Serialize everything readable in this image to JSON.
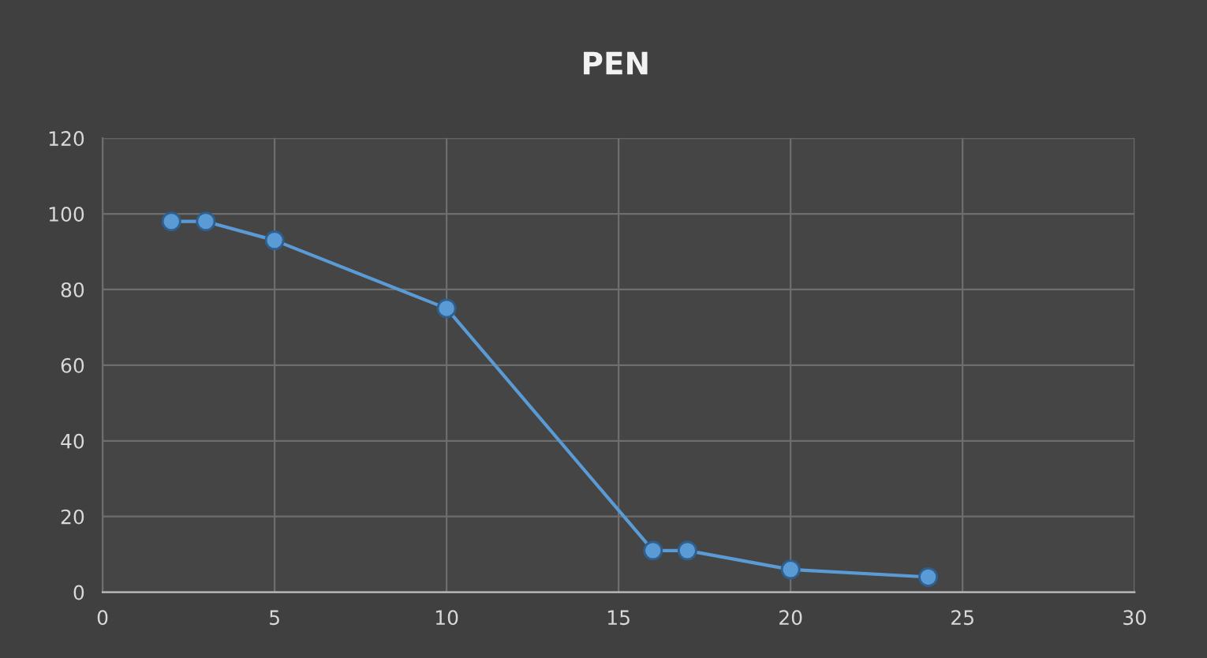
{
  "chart_data": {
    "type": "line",
    "title": "PEN",
    "x": [
      2,
      3,
      5,
      10,
      16,
      17,
      20,
      24
    ],
    "series": [
      {
        "color": "#5b9bd5",
        "values": [
          98,
          98,
          93,
          75,
          11,
          11,
          6,
          4
        ]
      }
    ],
    "xlim": [
      0,
      30
    ],
    "xticks": [
      0,
      5,
      10,
      15,
      20,
      25,
      30
    ],
    "ylim": [
      0,
      120
    ],
    "yticks": [
      0,
      20,
      40,
      60,
      80,
      100,
      120
    ],
    "grid": true,
    "marker": "circle",
    "line_style": "solid"
  }
}
